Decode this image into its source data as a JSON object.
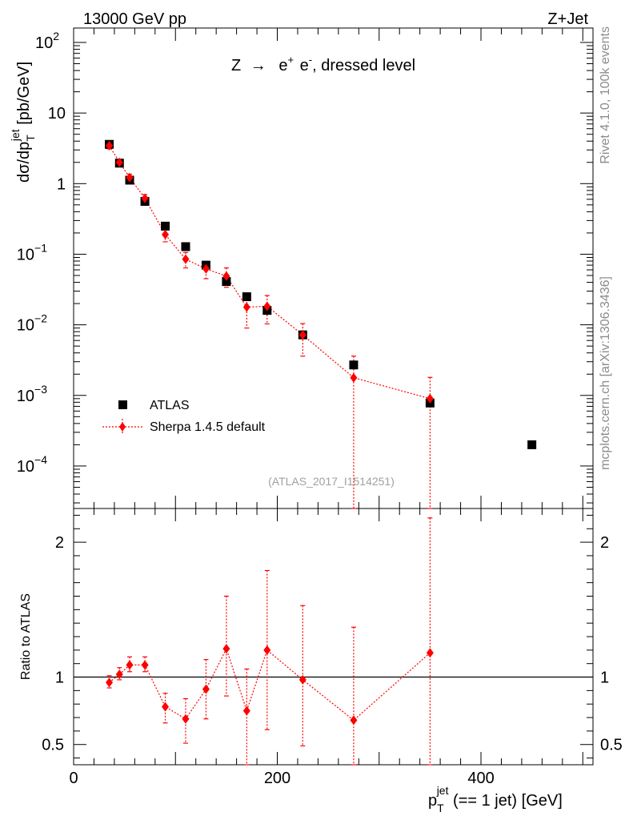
{
  "header": {
    "left": "13000 GeV pp",
    "right": "Z+Jet"
  },
  "side_labels": {
    "rivet": "Rivet 4.1.0,  100k events",
    "mcplots": "mcplots.cern.ch [arXiv:1306.3436]"
  },
  "chart_data": [
    {
      "type": "scatter",
      "title": "Z → e⁺ e⁻, dressed level",
      "title_parts": {
        "z": "Z",
        "arrow": "→",
        "e": "e",
        "plus": "+",
        "minus": "-",
        "rest": ", dressed level"
      },
      "analysis_id": "(ATLAS_2017_I1514251)",
      "ylabel": "dσ/dp_T^jet [pb/GeV]",
      "ylabel_parts": {
        "main": "dσ/dp",
        "sup": "jet",
        "sub": "T",
        "unit": " [pb/GeV]"
      },
      "yscale": "log",
      "ylim": [
        2.5e-05,
        160
      ],
      "xlim": [
        0,
        510
      ],
      "y_ticks": [
        {
          "value": 0.0001,
          "base": "10",
          "exp": "−4"
        },
        {
          "value": 0.001,
          "base": "10",
          "exp": "−3"
        },
        {
          "value": 0.01,
          "base": "10",
          "exp": "−2"
        },
        {
          "value": 0.1,
          "base": "10",
          "exp": "−1"
        },
        {
          "value": 1,
          "base": "1",
          "exp": ""
        },
        {
          "value": 10,
          "base": "10",
          "exp": ""
        },
        {
          "value": 100,
          "base": "10",
          "exp": "2"
        }
      ],
      "legend_position": "lower-left",
      "series": [
        {
          "name": "ATLAS",
          "color": "#000000",
          "marker": "square",
          "x": [
            35,
            45,
            55,
            70,
            90,
            110,
            130,
            150,
            170,
            190,
            225,
            275,
            350,
            450
          ],
          "y": [
            3.6,
            1.95,
            1.12,
            0.56,
            0.25,
            0.128,
            0.07,
            0.041,
            0.025,
            0.016,
            0.0072,
            0.0027,
            0.00078,
            0.0002
          ]
        },
        {
          "name": "Sherpa 1.4.5 default",
          "color": "#ff0000",
          "marker": "diamond",
          "line": "dotted",
          "x": [
            35,
            45,
            55,
            70,
            90,
            110,
            130,
            150,
            170,
            190,
            225,
            275,
            350
          ],
          "y": [
            3.45,
            2.0,
            1.22,
            0.62,
            0.19,
            0.085,
            0.062,
            0.049,
            0.0178,
            0.0183,
            0.0072,
            0.00178,
            0.0009
          ],
          "y_err_low": [
            3.1,
            1.78,
            1.08,
            0.54,
            0.15,
            0.064,
            0.045,
            0.034,
            0.009,
            0.0103,
            0.0036,
            1e-07,
            1e-07
          ],
          "y_err_high": [
            3.8,
            2.22,
            1.36,
            0.7,
            0.23,
            0.106,
            0.079,
            0.064,
            0.026,
            0.026,
            0.0104,
            0.0036,
            0.0018
          ]
        }
      ]
    },
    {
      "type": "scatter",
      "ylabel": "Ratio to ATLAS",
      "xlabel": "p_T^jet (== 1 jet) [GeV]",
      "xlabel_parts": {
        "main": "p",
        "sup": "jet",
        "sub": "T",
        "rest": " (== 1 jet) [GeV]"
      },
      "xlim": [
        0,
        510
      ],
      "ylim": [
        0.35,
        2.25
      ],
      "x_ticks": [
        0,
        200,
        400
      ],
      "y_ticks": [
        0.5,
        1,
        2
      ],
      "reference_line": 1,
      "series": [
        {
          "name": "Sherpa 1.4.5 default",
          "color": "#ff0000",
          "marker": "diamond",
          "line": "dotted",
          "x": [
            35,
            45,
            55,
            70,
            90,
            110,
            130,
            150,
            170,
            190,
            225,
            275,
            350
          ],
          "y": [
            0.96,
            1.02,
            1.09,
            1.09,
            0.78,
            0.69,
            0.91,
            1.21,
            0.75,
            1.2,
            0.98,
            0.68,
            1.18
          ],
          "y_err_low": [
            0.92,
            0.98,
            1.04,
            1.04,
            0.66,
            0.51,
            0.69,
            0.86,
            0.35,
            0.61,
            0.49,
            0.35,
            0.35
          ],
          "y_err_high": [
            1.01,
            1.07,
            1.15,
            1.15,
            0.88,
            0.84,
            1.13,
            1.6,
            1.06,
            1.79,
            1.53,
            1.37,
            2.18
          ]
        }
      ]
    }
  ]
}
